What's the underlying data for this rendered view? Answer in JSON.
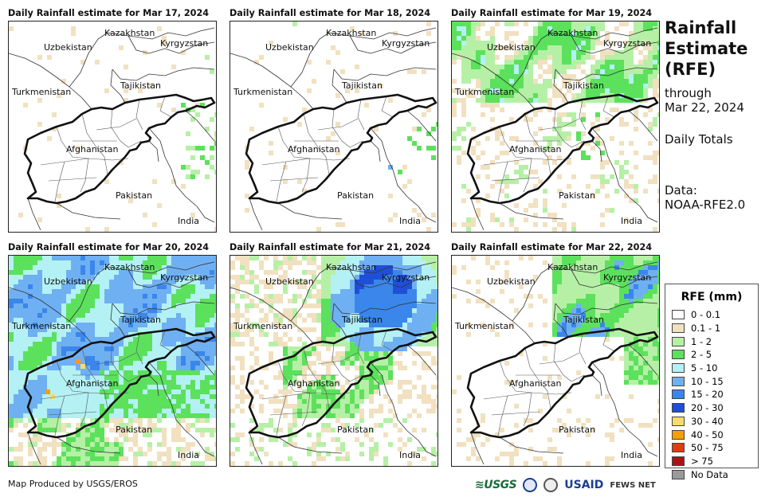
{
  "panels": [
    {
      "title": "Daily Rainfall estimate for Mar 17, 2024",
      "pattern": "dry_sparse"
    },
    {
      "title": "Daily Rainfall estimate for Mar 18, 2024",
      "pattern": "dry_sparse2"
    },
    {
      "title": "Daily Rainfall estimate for Mar 19, 2024",
      "pattern": "north_green"
    },
    {
      "title": "Daily Rainfall estimate for Mar 20, 2024",
      "pattern": "heavy_blue"
    },
    {
      "title": "Daily Rainfall estimate for Mar 21, 2024",
      "pattern": "northeast_blue"
    },
    {
      "title": "Daily Rainfall estimate for Mar 22, 2024",
      "pattern": "northeast_green"
    }
  ],
  "place_labels": {
    "kazakhstan": "Kazakhstan",
    "uzbekistan": "Uzbekistan",
    "kyrgyzstan": "Kyrgyzstan",
    "tajikistan": "Tajikistan",
    "turkmenistan": "Turkmenistan",
    "afghanistan": "Afghanistan",
    "pakistan": "Pakistan",
    "india": "India"
  },
  "sidebar": {
    "title": "Rainfall Estimate (RFE)",
    "through_label": "through",
    "through_date": "Mar 22, 2024",
    "totals": "Daily Totals",
    "data_label": "Data:",
    "data_source": "NOAA-RFE2.0"
  },
  "legend": {
    "title": "RFE (mm)",
    "items": [
      {
        "label": "0 - 0.1",
        "color": "#ffffff"
      },
      {
        "label": "0.1 - 1",
        "color": "#f1e1c0"
      },
      {
        "label": "1 - 2",
        "color": "#b6f0a6"
      },
      {
        "label": "2 - 5",
        "color": "#5ce15c"
      },
      {
        "label": "5 - 10",
        "color": "#b3f1f5"
      },
      {
        "label": "10 - 15",
        "color": "#6fb0f2"
      },
      {
        "label": "15 - 20",
        "color": "#3a86ea"
      },
      {
        "label": "20 - 30",
        "color": "#1f4fd8"
      },
      {
        "label": "30 - 40",
        "color": "#f9dc6c"
      },
      {
        "label": "40 - 50",
        "color": "#f59f00"
      },
      {
        "label": "50 - 75",
        "color": "#e43b0c"
      },
      {
        "label": "> 75",
        "color": "#a81414"
      },
      {
        "label": "No Data",
        "color": "#9a9a9a"
      }
    ]
  },
  "credit": "Map Produced by USGS/EROS",
  "logos": {
    "usgs": "≋USGS",
    "usaid": "USAID",
    "fews": "FEWS NET"
  }
}
